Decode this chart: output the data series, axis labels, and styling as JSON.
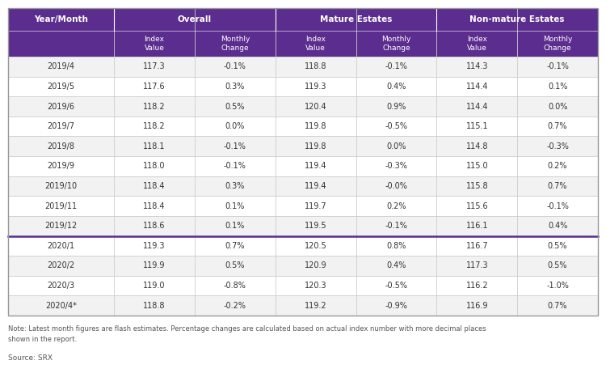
{
  "header_row1": [
    "Year/Month",
    "Overall",
    "Mature Estates",
    "Non-mature Estates"
  ],
  "header_row2": [
    "",
    "Index\nValue",
    "Monthly\nChange",
    "Index\nValue",
    "Monthly\nChange",
    "Index\nValue",
    "Monthly\nChange"
  ],
  "rows": [
    [
      "2019/4",
      "117.3",
      "-0.1%",
      "118.8",
      "-0.1%",
      "114.3",
      "-0.1%"
    ],
    [
      "2019/5",
      "117.6",
      "0.3%",
      "119.3",
      "0.4%",
      "114.4",
      "0.1%"
    ],
    [
      "2019/6",
      "118.2",
      "0.5%",
      "120.4",
      "0.9%",
      "114.4",
      "0.0%"
    ],
    [
      "2019/7",
      "118.2",
      "0.0%",
      "119.8",
      "-0.5%",
      "115.1",
      "0.7%"
    ],
    [
      "2019/8",
      "118.1",
      "-0.1%",
      "119.8",
      "0.0%",
      "114.8",
      "-0.3%"
    ],
    [
      "2019/9",
      "118.0",
      "-0.1%",
      "119.4",
      "-0.3%",
      "115.0",
      "0.2%"
    ],
    [
      "2019/10",
      "118.4",
      "0.3%",
      "119.4",
      "-0.0%",
      "115.8",
      "0.7%"
    ],
    [
      "2019/11",
      "118.4",
      "0.1%",
      "119.7",
      "0.2%",
      "115.6",
      "-0.1%"
    ],
    [
      "2019/12",
      "118.6",
      "0.1%",
      "119.5",
      "-0.1%",
      "116.1",
      "0.4%"
    ],
    [
      "2020/1",
      "119.3",
      "0.7%",
      "120.5",
      "0.8%",
      "116.7",
      "0.5%"
    ],
    [
      "2020/2",
      "119.9",
      "0.5%",
      "120.9",
      "0.4%",
      "117.3",
      "0.5%"
    ],
    [
      "2020/3",
      "119.0",
      "-0.8%",
      "120.3",
      "-0.5%",
      "116.2",
      "-1.0%"
    ],
    [
      "2020/4*",
      "118.8",
      "-0.2%",
      "119.2",
      "-0.9%",
      "116.9",
      "0.7%"
    ]
  ],
  "note": "Note: Latest month figures are flash estimates. Percentage changes are calculated based on actual index number with more decimal places\nshown in the report.",
  "source": "Source: SRX",
  "header_bg": "#5b2d8e",
  "header_text_color": "#ffffff",
  "row_bg_odd": "#f2f2f2",
  "row_bg_even": "#ffffff",
  "border_color": "#cccccc",
  "purple_sep_after_row": 8,
  "year2020_border_color": "#5b2d8e",
  "text_color": "#333333",
  "note_color": "#555555"
}
